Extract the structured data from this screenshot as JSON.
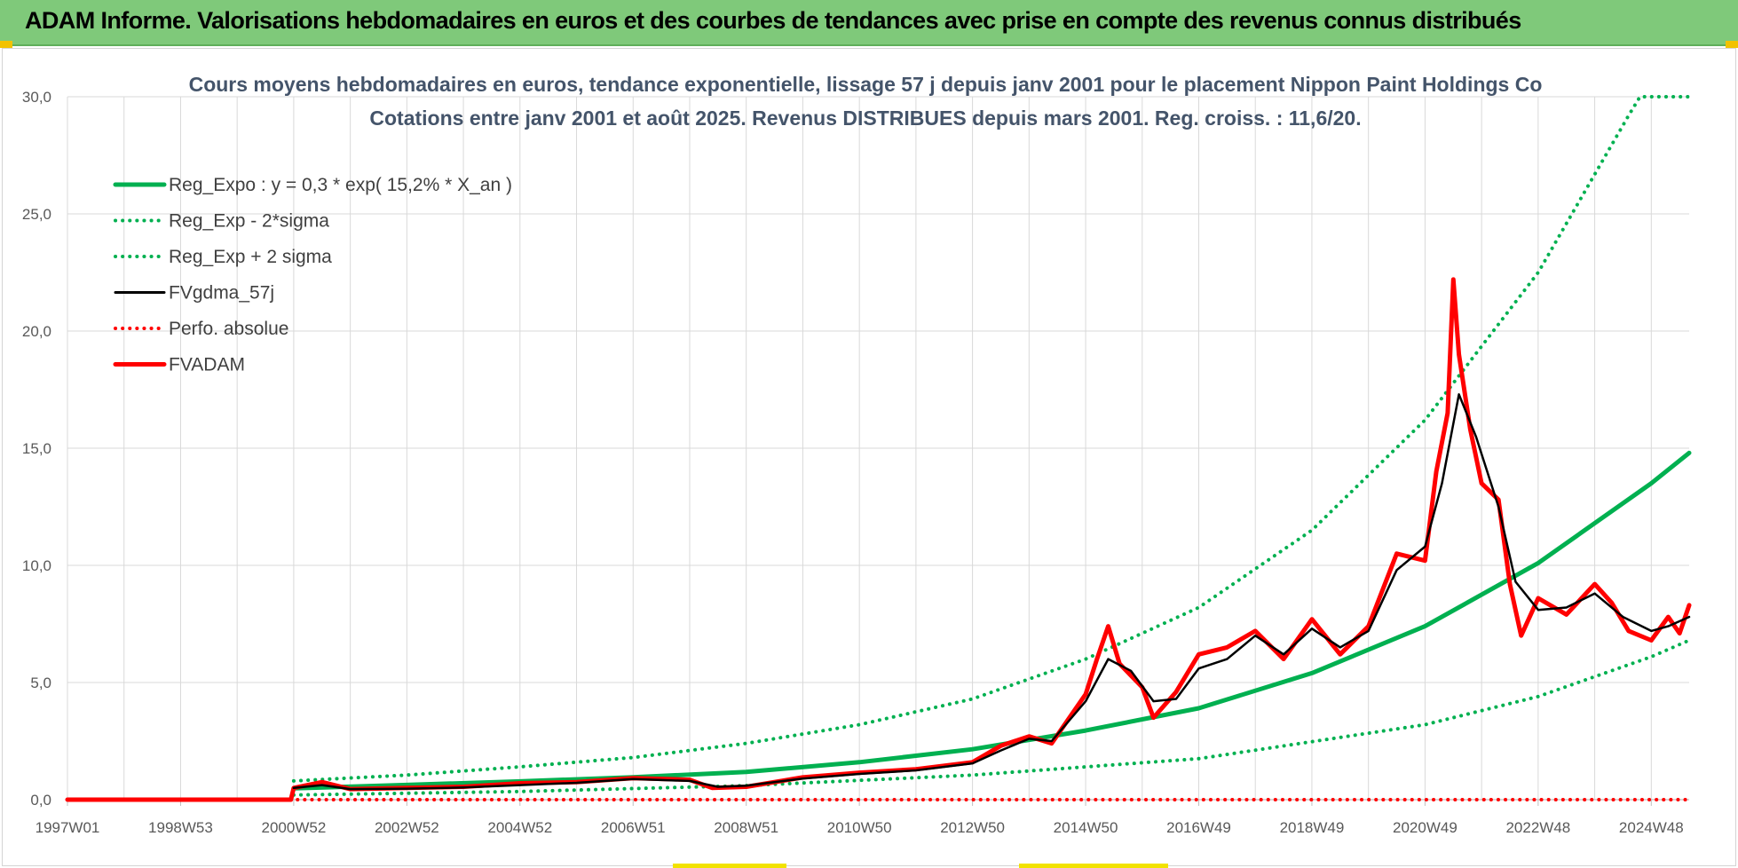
{
  "header": {
    "title": "ADAM Informe. Valorisations hebdomadaires en euros et des courbes de tendances avec prise en compte des revenus connus distribués"
  },
  "colors": {
    "header_bg": "#7fc97a",
    "regression": "#00b050",
    "fvgdma": "#000000",
    "fvadam": "#ff0000",
    "grid": "#d9d9d9"
  },
  "chart_data": {
    "type": "line",
    "title_line1": "Cours moyens hebdomadaires en euros, tendance exponentielle, lissage 57 j depuis janv 2001  pour le placement Nippon Paint Holdings Co",
    "title_line2": "Cotations entre janv 2001 et août 2025.  Revenus DISTRIBUES depuis mars 2001. Reg. croiss. : 11,6/20.",
    "xlabel": "",
    "ylabel": "",
    "ylim": [
      0,
      30
    ],
    "xlim": [
      1997.0,
      2025.67
    ],
    "y_ticks": [
      "0,0",
      "5,0",
      "10,0",
      "15,0",
      "20,0",
      "25,0",
      "30,0"
    ],
    "x_ticks": [
      {
        "label": "1997W01",
        "x": 1997.0
      },
      {
        "label": "1998W53",
        "x": 1999.0
      },
      {
        "label": "2000W52",
        "x": 2001.0
      },
      {
        "label": "2002W52",
        "x": 2003.0
      },
      {
        "label": "2004W52",
        "x": 2005.0
      },
      {
        "label": "2006W51",
        "x": 2007.0
      },
      {
        "label": "2008W51",
        "x": 2009.0
      },
      {
        "label": "2010W50",
        "x": 2011.0
      },
      {
        "label": "2012W50",
        "x": 2013.0
      },
      {
        "label": "2014W50",
        "x": 2015.0
      },
      {
        "label": "2016W49",
        "x": 2017.0
      },
      {
        "label": "2018W49",
        "x": 2019.0
      },
      {
        "label": "2020W49",
        "x": 2021.0
      },
      {
        "label": "2022W48",
        "x": 2023.0
      },
      {
        "label": "2024W48",
        "x": 2025.0
      }
    ],
    "grid": true,
    "legend_position": "top-left",
    "series": [
      {
        "name": "Reg_Expo : y = 0,3 * exp( 15,2% *  X_an )",
        "style": "solid",
        "color": "#00b050",
        "points": [
          [
            2001.0,
            0.48
          ],
          [
            2003.0,
            0.63
          ],
          [
            2005.0,
            0.78
          ],
          [
            2007.0,
            0.96
          ],
          [
            2009.0,
            1.18
          ],
          [
            2011.0,
            1.6
          ],
          [
            2013.0,
            2.15
          ],
          [
            2015.0,
            2.95
          ],
          [
            2017.0,
            3.9
          ],
          [
            2019.0,
            5.4
          ],
          [
            2021.0,
            7.4
          ],
          [
            2023.0,
            10.1
          ],
          [
            2025.0,
            13.5
          ],
          [
            2025.67,
            14.8
          ]
        ]
      },
      {
        "name": "Reg_Exp - 2*sigma",
        "style": "dotted",
        "color": "#00b050",
        "points": [
          [
            2001.0,
            0.2
          ],
          [
            2005.0,
            0.35
          ],
          [
            2009.0,
            0.6
          ],
          [
            2013.0,
            1.05
          ],
          [
            2017.0,
            1.75
          ],
          [
            2021.0,
            3.2
          ],
          [
            2023.0,
            4.4
          ],
          [
            2025.0,
            6.1
          ],
          [
            2025.67,
            6.8
          ]
        ]
      },
      {
        "name": "Reg_Exp + 2 sigma",
        "style": "dotted",
        "color": "#00b050",
        "points": [
          [
            2001.0,
            0.8
          ],
          [
            2003.0,
            1.05
          ],
          [
            2005.0,
            1.4
          ],
          [
            2007.0,
            1.8
          ],
          [
            2009.0,
            2.4
          ],
          [
            2011.0,
            3.2
          ],
          [
            2013.0,
            4.3
          ],
          [
            2015.0,
            6.0
          ],
          [
            2017.0,
            8.2
          ],
          [
            2019.0,
            11.5
          ],
          [
            2021.0,
            16.2
          ],
          [
            2023.0,
            22.5
          ],
          [
            2024.6,
            29.2
          ],
          [
            2024.8,
            30.0
          ],
          [
            2025.67,
            30.0
          ]
        ]
      },
      {
        "name": "FVgdma_57j",
        "style": "solid",
        "color": "#000000",
        "points": [
          [
            2001.0,
            0.5
          ],
          [
            2001.5,
            0.62
          ],
          [
            2002.0,
            0.45
          ],
          [
            2003.0,
            0.47
          ],
          [
            2004.0,
            0.52
          ],
          [
            2005.0,
            0.62
          ],
          [
            2006.0,
            0.72
          ],
          [
            2007.0,
            0.88
          ],
          [
            2008.0,
            0.8
          ],
          [
            2008.5,
            0.55
          ],
          [
            2009.0,
            0.6
          ],
          [
            2010.0,
            0.9
          ],
          [
            2011.0,
            1.1
          ],
          [
            2012.0,
            1.25
          ],
          [
            2013.0,
            1.55
          ],
          [
            2013.5,
            2.1
          ],
          [
            2014.0,
            2.6
          ],
          [
            2014.4,
            2.5
          ],
          [
            2015.0,
            4.2
          ],
          [
            2015.4,
            6.0
          ],
          [
            2015.8,
            5.5
          ],
          [
            2016.2,
            4.2
          ],
          [
            2016.6,
            4.3
          ],
          [
            2017.0,
            5.6
          ],
          [
            2017.5,
            6.0
          ],
          [
            2018.0,
            7.0
          ],
          [
            2018.5,
            6.2
          ],
          [
            2019.0,
            7.3
          ],
          [
            2019.5,
            6.5
          ],
          [
            2020.0,
            7.2
          ],
          [
            2020.5,
            9.8
          ],
          [
            2021.0,
            10.8
          ],
          [
            2021.3,
            13.5
          ],
          [
            2021.6,
            17.3
          ],
          [
            2021.9,
            15.5
          ],
          [
            2022.3,
            12.5
          ],
          [
            2022.6,
            9.3
          ],
          [
            2023.0,
            8.1
          ],
          [
            2023.5,
            8.2
          ],
          [
            2024.0,
            8.8
          ],
          [
            2024.5,
            7.8
          ],
          [
            2025.0,
            7.2
          ],
          [
            2025.3,
            7.4
          ],
          [
            2025.67,
            7.8
          ]
        ]
      },
      {
        "name": "Perfo. absolue",
        "style": "dotted",
        "color": "#ff0000",
        "points": [
          [
            1997.0,
            0.0
          ],
          [
            2001.0,
            0.0
          ],
          [
            2025.67,
            0.0
          ]
        ]
      },
      {
        "name": "FVADAM",
        "style": "solid",
        "color": "#ff0000",
        "points": [
          [
            1997.0,
            0.0
          ],
          [
            2000.95,
            0.0
          ],
          [
            2001.0,
            0.5
          ],
          [
            2001.5,
            0.75
          ],
          [
            2002.0,
            0.45
          ],
          [
            2003.0,
            0.5
          ],
          [
            2004.0,
            0.55
          ],
          [
            2005.0,
            0.7
          ],
          [
            2006.0,
            0.75
          ],
          [
            2007.0,
            0.92
          ],
          [
            2008.0,
            0.85
          ],
          [
            2008.4,
            0.5
          ],
          [
            2009.0,
            0.55
          ],
          [
            2010.0,
            0.95
          ],
          [
            2011.0,
            1.15
          ],
          [
            2012.0,
            1.3
          ],
          [
            2013.0,
            1.6
          ],
          [
            2013.5,
            2.3
          ],
          [
            2014.0,
            2.7
          ],
          [
            2014.4,
            2.4
          ],
          [
            2015.0,
            4.5
          ],
          [
            2015.2,
            6.0
          ],
          [
            2015.4,
            7.4
          ],
          [
            2015.6,
            5.8
          ],
          [
            2016.0,
            4.8
          ],
          [
            2016.2,
            3.5
          ],
          [
            2016.6,
            4.6
          ],
          [
            2017.0,
            6.2
          ],
          [
            2017.5,
            6.5
          ],
          [
            2018.0,
            7.2
          ],
          [
            2018.5,
            6.0
          ],
          [
            2019.0,
            7.7
          ],
          [
            2019.5,
            6.2
          ],
          [
            2020.0,
            7.4
          ],
          [
            2020.5,
            10.5
          ],
          [
            2021.0,
            10.2
          ],
          [
            2021.2,
            14.0
          ],
          [
            2021.4,
            16.5
          ],
          [
            2021.5,
            22.2
          ],
          [
            2021.6,
            19.0
          ],
          [
            2021.8,
            15.8
          ],
          [
            2022.0,
            13.5
          ],
          [
            2022.3,
            12.8
          ],
          [
            2022.5,
            9.2
          ],
          [
            2022.7,
            7.0
          ],
          [
            2023.0,
            8.6
          ],
          [
            2023.5,
            7.9
          ],
          [
            2024.0,
            9.2
          ],
          [
            2024.3,
            8.4
          ],
          [
            2024.6,
            7.2
          ],
          [
            2025.0,
            6.8
          ],
          [
            2025.3,
            7.8
          ],
          [
            2025.5,
            7.1
          ],
          [
            2025.67,
            8.3
          ]
        ]
      }
    ]
  }
}
